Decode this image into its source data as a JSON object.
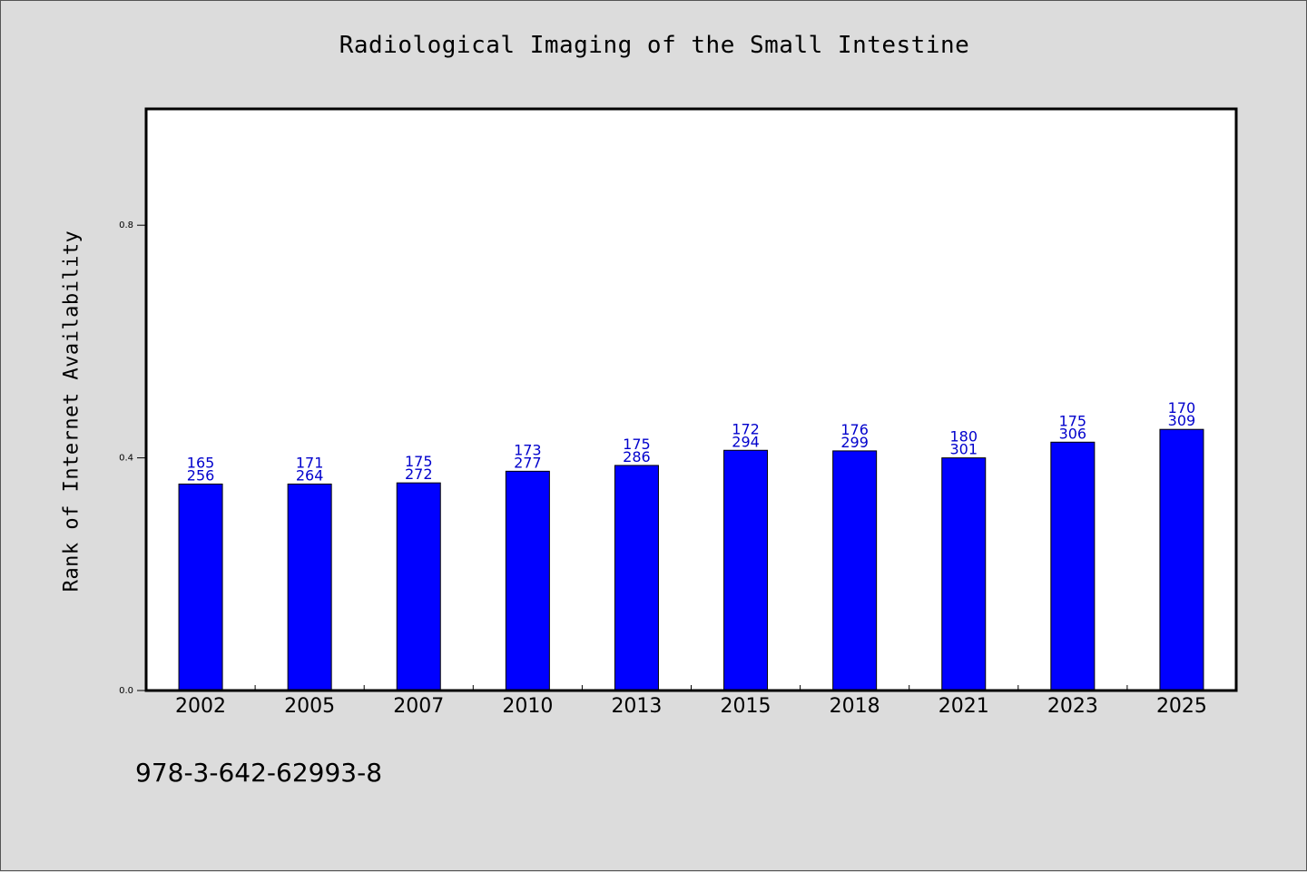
{
  "chart_data": {
    "type": "bar",
    "title": "Radiological Imaging of the Small Intestine",
    "ylabel": "Rank of Internet Availability",
    "xlabel": "",
    "ylim": [
      0,
      1.0
    ],
    "yticks": [
      "0.0",
      "0.4",
      "0.8"
    ],
    "yticks_values": [
      0.0,
      0.4,
      0.8
    ],
    "grid": false,
    "categories": [
      "2002",
      "2005",
      "2007",
      "2010",
      "2013",
      "2015",
      "2018",
      "2021",
      "2023",
      "2025"
    ],
    "values": [
      0.355,
      0.355,
      0.357,
      0.377,
      0.387,
      0.413,
      0.412,
      0.4,
      0.427,
      0.449
    ],
    "label_top": [
      "165",
      "171",
      "175",
      "173",
      "175",
      "172",
      "176",
      "180",
      "175",
      "170"
    ],
    "label_bottom": [
      "256",
      "264",
      "272",
      "277",
      "286",
      "294",
      "299",
      "301",
      "306",
      "309"
    ],
    "bar_color": "#0000ff",
    "label_color": "#0000cc"
  },
  "footer": {
    "isbn": "978-3-642-62993-8"
  }
}
